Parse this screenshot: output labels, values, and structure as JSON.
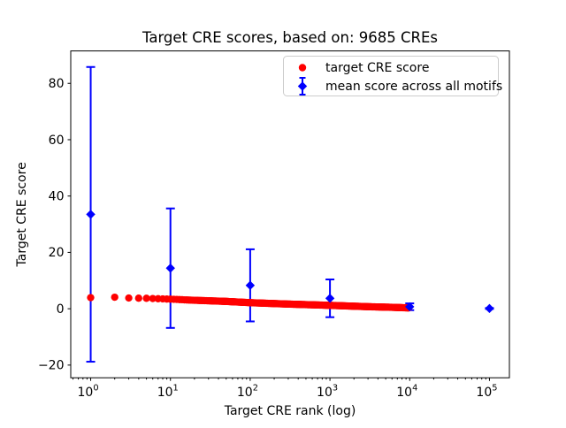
{
  "title": "Target CRE scores, based on: 9685 CREs",
  "xlabel": "Target CRE rank (log)",
  "ylabel": "Target CRE score",
  "legend": {
    "items": [
      {
        "label": "target CRE score",
        "marker": "circle",
        "color": "#ff0000"
      },
      {
        "label": "mean score across all motifs",
        "marker": "diamond-errorbar",
        "color": "#0000ff"
      }
    ]
  },
  "colors": {
    "red": "#ff0000",
    "blue": "#0000ff",
    "axis": "#000000",
    "legend_edge": "#cccccc",
    "background": "#ffffff"
  },
  "chart_data": {
    "type": "scatter",
    "title": "Target CRE scores, based on: 9685 CREs",
    "xlabel": "Target CRE rank (log)",
    "ylabel": "Target CRE score",
    "xscale": "log",
    "xlim_log10": [
      -0.25,
      5.25
    ],
    "ylim": [
      -24.5,
      91.5
    ],
    "xticks_exponents": [
      0,
      1,
      2,
      3,
      4,
      5
    ],
    "yticks": [
      -20,
      0,
      20,
      40,
      60,
      80
    ],
    "grid": false,
    "legend_position": "upper right",
    "series": [
      {
        "name": "target CRE score",
        "marker": "circle",
        "color": "#ff0000",
        "n_points": 9685,
        "rank_range": [
          1,
          9685
        ],
        "rank_score_anchors": [
          [
            1,
            3.95
          ],
          [
            2,
            4.1
          ],
          [
            3,
            3.8
          ],
          [
            4,
            3.75
          ],
          [
            5,
            3.7
          ],
          [
            7,
            3.55
          ],
          [
            10,
            3.4
          ],
          [
            20,
            3.0
          ],
          [
            50,
            2.6
          ],
          [
            100,
            2.15
          ],
          [
            300,
            1.65
          ],
          [
            1000,
            1.2
          ],
          [
            3000,
            0.72
          ],
          [
            6000,
            0.5
          ],
          [
            9685,
            0.3
          ]
        ]
      },
      {
        "name": "mean score across all motifs",
        "marker": "diamond",
        "color": "#0000ff",
        "x": [
          1,
          10,
          100,
          1000,
          10000,
          100000
        ],
        "y": [
          33.5,
          14.4,
          8.3,
          3.7,
          0.7,
          0.1
        ],
        "yerr": [
          52.3,
          21.2,
          12.8,
          6.7,
          1.2,
          0.15
        ]
      }
    ]
  }
}
